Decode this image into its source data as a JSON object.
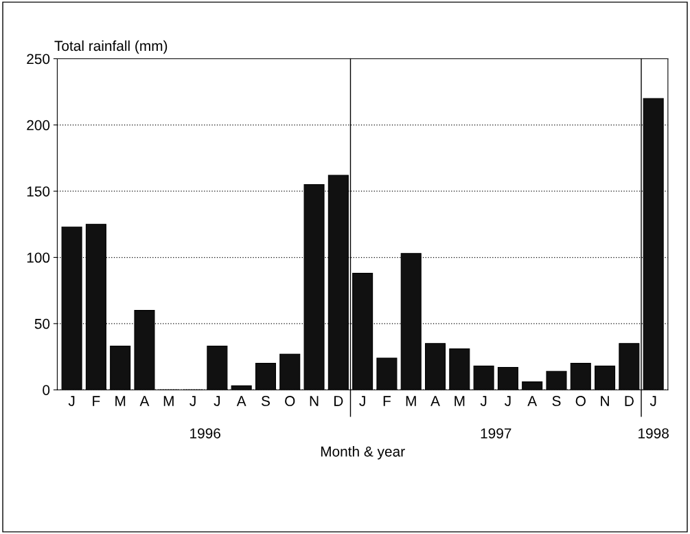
{
  "chart_data": {
    "type": "bar",
    "xlabel": "Month & year",
    "ylabel": "Total rainfall (mm)",
    "categories": [
      "J",
      "F",
      "M",
      "A",
      "M",
      "J",
      "J",
      "A",
      "S",
      "O",
      "N",
      "D",
      "J",
      "F",
      "M",
      "A",
      "M",
      "J",
      "J",
      "A",
      "S",
      "O",
      "N",
      "D",
      "J"
    ],
    "values": [
      123,
      125,
      33,
      60,
      0,
      0,
      33,
      3,
      20,
      27,
      155,
      162,
      88,
      24,
      103,
      35,
      31,
      18,
      17,
      6,
      14,
      20,
      18,
      35,
      220
    ],
    "color": "#111111",
    "ylim": [
      0,
      250
    ],
    "yticks": [
      0,
      50,
      100,
      150,
      200,
      250
    ],
    "grid": "y",
    "annotations": [
      "1996",
      "1997",
      "1998"
    ]
  }
}
